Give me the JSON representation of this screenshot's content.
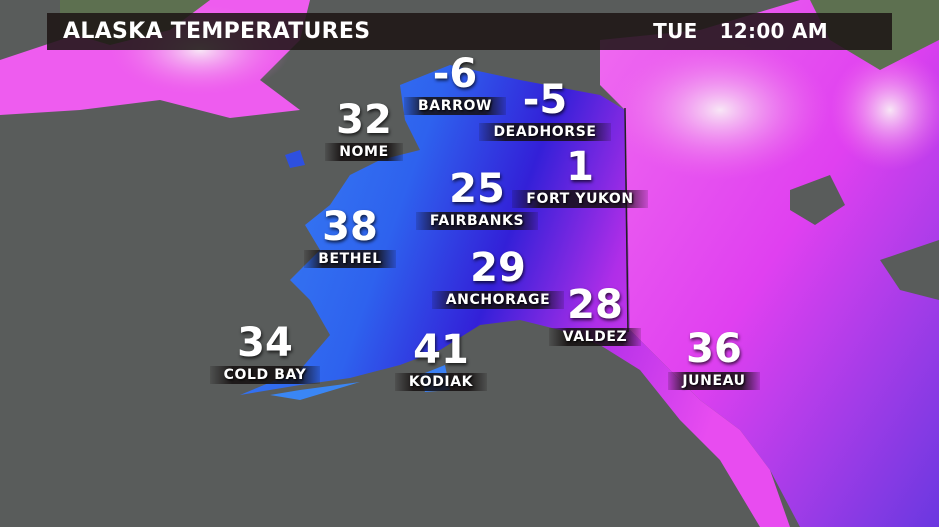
{
  "header": {
    "title": "ALASKA TEMPERATURES",
    "day": "TUE",
    "time": "12:00 AM"
  },
  "legend_colors": {
    "water": "#595c5b",
    "warm_blue": "#2f6cf0",
    "deep_blue": "#2a2fd0",
    "cold_magenta": "#e040f0",
    "coldest_pink": "#f4b8f0"
  },
  "cities": [
    {
      "name": "BARROW",
      "temp": "-6"
    },
    {
      "name": "DEADHORSE",
      "temp": "-5"
    },
    {
      "name": "NOME",
      "temp": "32"
    },
    {
      "name": "FORT YUKON",
      "temp": "1"
    },
    {
      "name": "FAIRBANKS",
      "temp": "25"
    },
    {
      "name": "BETHEL",
      "temp": "38"
    },
    {
      "name": "ANCHORAGE",
      "temp": "29"
    },
    {
      "name": "VALDEZ",
      "temp": "28"
    },
    {
      "name": "COLD BAY",
      "temp": "34"
    },
    {
      "name": "KODIAK",
      "temp": "41"
    },
    {
      "name": "JUNEAU",
      "temp": "36"
    }
  ]
}
